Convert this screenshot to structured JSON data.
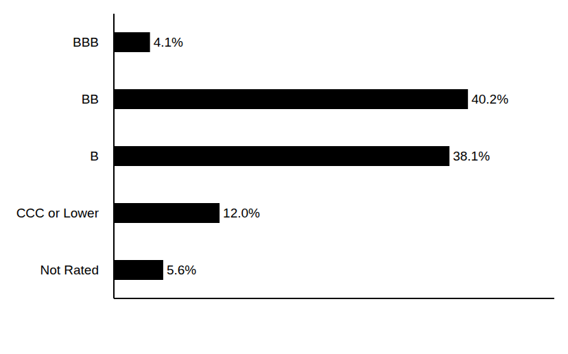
{
  "chart_data": {
    "type": "bar",
    "orientation": "horizontal",
    "categories": [
      "BBB",
      "BB",
      "B",
      "CCC or Lower",
      "Not Rated"
    ],
    "values": [
      4.1,
      40.2,
      38.1,
      12.0,
      5.6
    ],
    "value_labels": [
      "4.1%",
      "40.2%",
      "38.1%",
      "12.0%",
      "5.6%"
    ],
    "color": "#000000",
    "xlim": [
      0,
      50
    ],
    "data_labels": true,
    "tick_labels": "y",
    "grid": false
  }
}
